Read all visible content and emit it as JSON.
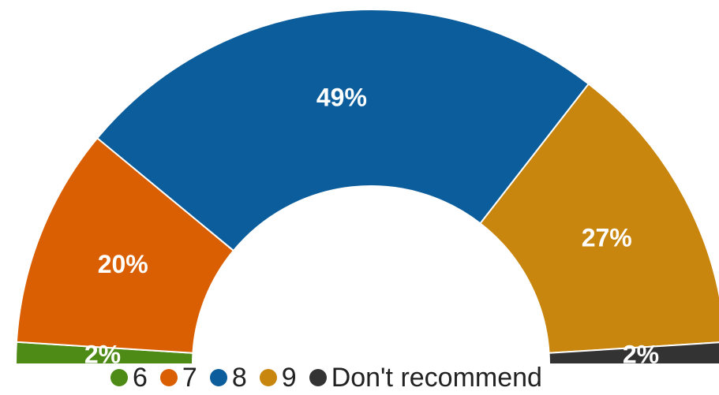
{
  "chart_data": {
    "type": "pie",
    "variant": "half-donut",
    "slices": [
      {
        "label": "6",
        "value": 2,
        "data_label": "2%",
        "color": "#4E8A16"
      },
      {
        "label": "7",
        "value": 20,
        "data_label": "20%",
        "color": "#D95F02"
      },
      {
        "label": "8",
        "value": 49,
        "data_label": "49%",
        "color": "#0B5D9C"
      },
      {
        "label": "9",
        "value": 27,
        "data_label": "27%",
        "color": "#C8860E"
      },
      {
        "label": "Don't recommend",
        "value": 2,
        "data_label": "2%",
        "color": "#333333"
      }
    ],
    "legend_position": "bottom"
  }
}
